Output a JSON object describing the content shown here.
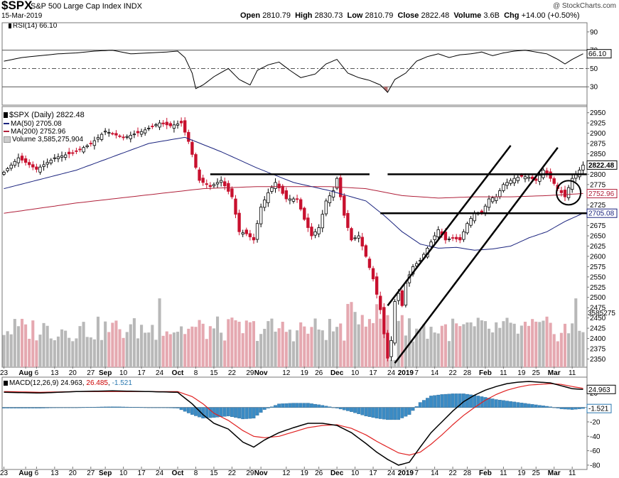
{
  "header": {
    "symbol": "$SPX",
    "name": "S&P 500 Large Cap Index",
    "exchange": "INDX",
    "date": "15-Mar-2019",
    "watermark": "@ StockCharts.com",
    "open_label": "Open",
    "open": "2810.79",
    "high_label": "High",
    "high": "2830.73",
    "low_label": "Low",
    "low": "2810.79",
    "close_label": "Close",
    "close": "2822.48",
    "volume_label": "Volume",
    "volume": "3.6B",
    "chg_label": "Chg",
    "chg": "+14.00 (+0.50%)"
  },
  "rsi_panel": {
    "legend": "RSI(14) 66.10",
    "current_label": "66.10",
    "current": 66.1,
    "ylim": [
      10,
      100
    ],
    "ticks": [
      30,
      50,
      70,
      90
    ],
    "tick_labels": [
      "30",
      "50",
      "70",
      "90"
    ],
    "overbought": 70,
    "midline": 50,
    "oversold": 30,
    "color_line": "#000000",
    "color_fill": "#b06060"
  },
  "price_panel": {
    "legend_main": "$SPX (Daily) 2822.48",
    "legend_ma50": "MA(50) 2705.08",
    "legend_ma200": "MA(200) 2752.96",
    "legend_volume": "Volume 3,585,275,904",
    "ylim": [
      2330,
      2965
    ],
    "ticks": [
      2350,
      2375,
      2400,
      2425,
      2450,
      2475,
      2500,
      2525,
      2550,
      2575,
      2600,
      2625,
      2650,
      2675,
      2700,
      2725,
      2750,
      2775,
      2800,
      2825,
      2850,
      2875,
      2900,
      2925,
      2950
    ],
    "tick_labels": [
      "2350",
      "2375",
      "2400",
      "2425",
      "2450",
      "2475",
      "2500",
      "2525",
      "2550",
      "2575",
      "2600",
      "2625",
      "2650",
      "2675",
      "2700",
      "2725",
      "2750",
      "2775",
      "2800",
      "2825",
      "2850",
      "2875",
      "2900",
      "2925",
      "2950"
    ],
    "last_price_label": "2822.48",
    "last_price": 2822.48,
    "ma200_label": "2752.96",
    "ma200_value": 2752.96,
    "ma50_label": "2705.08",
    "ma50_value": 2705.08,
    "volume_label": "3585275",
    "colors": {
      "up": "#000000",
      "down": "#c8102e",
      "ma50": "#1a237e",
      "ma200": "#b0203a",
      "vol_up": "#b8b8b8",
      "vol_down": "#e5a8b0"
    }
  },
  "macd_panel": {
    "legend_prefix": "MACD(12,26,9)",
    "macd_value": "24.963",
    "signal_value": "26.485",
    "hist_value": "-1.521",
    "ylim": [
      -86,
      42
    ],
    "ticks": [
      -80,
      -60,
      -40,
      -20,
      20
    ],
    "tick_labels": [
      "-80",
      "-60",
      "-40",
      "-20",
      "20"
    ],
    "macd_label": "24.963",
    "macd_now": 24.963,
    "hist_label": "-1.521",
    "hist_now": -1.521,
    "colors": {
      "macd": "#000000",
      "signal": "#e02020",
      "hist": "#3b8bc4"
    }
  },
  "x_axis": {
    "labels": [
      {
        "text": "23",
        "bar": 0
      },
      {
        "text": "Aug",
        "bar": 6,
        "bold": true
      },
      {
        "text": "6",
        "bar": 9
      },
      {
        "text": "13",
        "bar": 14
      },
      {
        "text": "20",
        "bar": 19
      },
      {
        "text": "27",
        "bar": 24
      },
      {
        "text": "Sep",
        "bar": 28,
        "bold": true
      },
      {
        "text": "10",
        "bar": 33
      },
      {
        "text": "17",
        "bar": 38
      },
      {
        "text": "24",
        "bar": 43
      },
      {
        "text": "Oct",
        "bar": 48,
        "bold": true
      },
      {
        "text": "8",
        "bar": 53
      },
      {
        "text": "15",
        "bar": 58
      },
      {
        "text": "22",
        "bar": 63
      },
      {
        "text": "29",
        "bar": 68
      },
      {
        "text": "Nov",
        "bar": 71,
        "bold": true
      },
      {
        "text": "12",
        "bar": 78
      },
      {
        "text": "19",
        "bar": 83
      },
      {
        "text": "26",
        "bar": 87
      },
      {
        "text": "Dec",
        "bar": 92,
        "bold": true
      },
      {
        "text": "10",
        "bar": 97
      },
      {
        "text": "17",
        "bar": 102
      },
      {
        "text": "24",
        "bar": 107
      },
      {
        "text": "2019",
        "bar": 111,
        "bold": true
      },
      {
        "text": "7",
        "bar": 114
      },
      {
        "text": "14",
        "bar": 119
      },
      {
        "text": "22",
        "bar": 124
      },
      {
        "text": "28",
        "bar": 128
      },
      {
        "text": "Feb",
        "bar": 133,
        "bold": true
      },
      {
        "text": "11",
        "bar": 138
      },
      {
        "text": "19",
        "bar": 143
      },
      {
        "text": "25",
        "bar": 147
      },
      {
        "text": "Mar",
        "bar": 152,
        "bold": true
      },
      {
        "text": "11",
        "bar": 157
      }
    ]
  },
  "annotations": [
    {
      "type": "hline",
      "from_bar": 57,
      "to_bar": 101,
      "price": 2800
    },
    {
      "type": "hline",
      "from_bar": 106,
      "to_bar": 161,
      "price": 2800
    },
    {
      "type": "hline",
      "from_bar": 104,
      "to_bar": 161,
      "price": 2705
    },
    {
      "type": "trendline",
      "from_bar": 106,
      "from_price": 2480,
      "to_bar": 140,
      "to_price": 2870
    },
    {
      "type": "trendline",
      "from_bar": 108,
      "from_price": 2340,
      "to_bar": 153,
      "to_price": 2865
    },
    {
      "type": "circle",
      "bar": 156,
      "price": 2755
    }
  ],
  "chart_data": {
    "type": "candlestick",
    "title": "$SPX (Daily)",
    "period": "23-Jul-2018 to 15-Mar-2019",
    "last_close": 2822.48,
    "anchors_bar_index_to_close": [
      [
        0,
        2805
      ],
      [
        4,
        2840
      ],
      [
        9,
        2812
      ],
      [
        14,
        2840
      ],
      [
        19,
        2852
      ],
      [
        24,
        2874
      ],
      [
        28,
        2905
      ],
      [
        33,
        2889
      ],
      [
        38,
        2904
      ],
      [
        43,
        2925
      ],
      [
        46,
        2918
      ],
      [
        49,
        2925
      ],
      [
        51,
        2880
      ],
      [
        54,
        2785
      ],
      [
        57,
        2770
      ],
      [
        60,
        2785
      ],
      [
        63,
        2745
      ],
      [
        65,
        2660
      ],
      [
        67,
        2655
      ],
      [
        69,
        2640
      ],
      [
        71,
        2720
      ],
      [
        73,
        2755
      ],
      [
        75,
        2780
      ],
      [
        78,
        2740
      ],
      [
        81,
        2740
      ],
      [
        83,
        2690
      ],
      [
        85,
        2650
      ],
      [
        87,
        2670
      ],
      [
        89,
        2735
      ],
      [
        91,
        2760
      ],
      [
        92,
        2790
      ],
      [
        94,
        2700
      ],
      [
        96,
        2640
      ],
      [
        98,
        2650
      ],
      [
        100,
        2600
      ],
      [
        102,
        2545
      ],
      [
        104,
        2470
      ],
      [
        106,
        2352
      ],
      [
        107,
        2395
      ],
      [
        108,
        2490
      ],
      [
        109,
        2510
      ],
      [
        110,
        2480
      ],
      [
        111,
        2535
      ],
      [
        113,
        2575
      ],
      [
        115,
        2590
      ],
      [
        118,
        2635
      ],
      [
        120,
        2665
      ],
      [
        122,
        2640
      ],
      [
        124,
        2645
      ],
      [
        126,
        2640
      ],
      [
        128,
        2680
      ],
      [
        130,
        2705
      ],
      [
        132,
        2705
      ],
      [
        134,
        2740
      ],
      [
        136,
        2745
      ],
      [
        138,
        2775
      ],
      [
        141,
        2790
      ],
      [
        143,
        2795
      ],
      [
        145,
        2793
      ],
      [
        147,
        2785
      ],
      [
        149,
        2810
      ],
      [
        151,
        2790
      ],
      [
        153,
        2765
      ],
      [
        155,
        2745
      ],
      [
        157,
        2790
      ],
      [
        159,
        2810
      ],
      [
        160,
        2822.48
      ]
    ],
    "ma50_anchors": [
      [
        0,
        2765
      ],
      [
        20,
        2810
      ],
      [
        40,
        2875
      ],
      [
        50,
        2890
      ],
      [
        60,
        2855
      ],
      [
        70,
        2815
      ],
      [
        80,
        2780
      ],
      [
        90,
        2760
      ],
      [
        100,
        2735
      ],
      [
        105,
        2700
      ],
      [
        110,
        2660
      ],
      [
        115,
        2630
      ],
      [
        120,
        2620
      ],
      [
        125,
        2622
      ],
      [
        130,
        2615
      ],
      [
        135,
        2618
      ],
      [
        140,
        2625
      ],
      [
        145,
        2645
      ],
      [
        150,
        2660
      ],
      [
        155,
        2685
      ],
      [
        160,
        2705.08
      ]
    ],
    "ma200_anchors": [
      [
        0,
        2705
      ],
      [
        20,
        2730
      ],
      [
        40,
        2750
      ],
      [
        55,
        2765
      ],
      [
        70,
        2770
      ],
      [
        90,
        2770
      ],
      [
        100,
        2765
      ],
      [
        110,
        2748
      ],
      [
        120,
        2742
      ],
      [
        130,
        2745
      ],
      [
        140,
        2745
      ],
      [
        150,
        2748
      ],
      [
        160,
        2752.96
      ]
    ],
    "rsi_anchors": [
      [
        0,
        58
      ],
      [
        5,
        62
      ],
      [
        10,
        64
      ],
      [
        15,
        66
      ],
      [
        20,
        67
      ],
      [
        25,
        69
      ],
      [
        30,
        70
      ],
      [
        35,
        66
      ],
      [
        40,
        67
      ],
      [
        45,
        68
      ],
      [
        48,
        69
      ],
      [
        50,
        62
      ],
      [
        52,
        45
      ],
      [
        53,
        28
      ],
      [
        55,
        32
      ],
      [
        58,
        41
      ],
      [
        62,
        50
      ],
      [
        65,
        38
      ],
      [
        68,
        32
      ],
      [
        70,
        48
      ],
      [
        73,
        54
      ],
      [
        76,
        57
      ],
      [
        79,
        48
      ],
      [
        82,
        40
      ],
      [
        86,
        44
      ],
      [
        89,
        55
      ],
      [
        92,
        60
      ],
      [
        95,
        45
      ],
      [
        98,
        40
      ],
      [
        101,
        37
      ],
      [
        104,
        32
      ],
      [
        106,
        24
      ],
      [
        108,
        38
      ],
      [
        111,
        45
      ],
      [
        114,
        58
      ],
      [
        117,
        63
      ],
      [
        120,
        66
      ],
      [
        123,
        62
      ],
      [
        126,
        65
      ],
      [
        129,
        66
      ],
      [
        132,
        68
      ],
      [
        135,
        64
      ],
      [
        138,
        67
      ],
      [
        141,
        69
      ],
      [
        144,
        70
      ],
      [
        147,
        68
      ],
      [
        150,
        66
      ],
      [
        153,
        60
      ],
      [
        155,
        55
      ],
      [
        157,
        60
      ],
      [
        160,
        66.1
      ]
    ],
    "macd_anchors": [
      [
        0,
        21
      ],
      [
        10,
        20
      ],
      [
        20,
        22
      ],
      [
        30,
        23
      ],
      [
        40,
        22
      ],
      [
        48,
        21
      ],
      [
        52,
        5
      ],
      [
        55,
        -10
      ],
      [
        58,
        -22
      ],
      [
        62,
        -30
      ],
      [
        66,
        -48
      ],
      [
        69,
        -55
      ],
      [
        72,
        -45
      ],
      [
        76,
        -35
      ],
      [
        80,
        -28
      ],
      [
        84,
        -22
      ],
      [
        88,
        -22
      ],
      [
        92,
        -25
      ],
      [
        96,
        -35
      ],
      [
        100,
        -50
      ],
      [
        103,
        -62
      ],
      [
        106,
        -72
      ],
      [
        109,
        -80
      ],
      [
        112,
        -76
      ],
      [
        115,
        -55
      ],
      [
        118,
        -35
      ],
      [
        121,
        -20
      ],
      [
        124,
        -5
      ],
      [
        127,
        8
      ],
      [
        130,
        17
      ],
      [
        133,
        24
      ],
      [
        136,
        29
      ],
      [
        139,
        33
      ],
      [
        142,
        35
      ],
      [
        145,
        36
      ],
      [
        148,
        35
      ],
      [
        151,
        34
      ],
      [
        154,
        30
      ],
      [
        157,
        26
      ],
      [
        160,
        24.963
      ]
    ],
    "signal_anchors": [
      [
        0,
        22
      ],
      [
        10,
        21
      ],
      [
        20,
        22
      ],
      [
        30,
        22
      ],
      [
        40,
        22
      ],
      [
        48,
        22
      ],
      [
        52,
        15
      ],
      [
        55,
        5
      ],
      [
        58,
        -8
      ],
      [
        62,
        -18
      ],
      [
        66,
        -32
      ],
      [
        69,
        -40
      ],
      [
        72,
        -42
      ],
      [
        76,
        -40
      ],
      [
        80,
        -34
      ],
      [
        84,
        -28
      ],
      [
        88,
        -25
      ],
      [
        92,
        -24
      ],
      [
        96,
        -29
      ],
      [
        100,
        -38
      ],
      [
        103,
        -47
      ],
      [
        106,
        -55
      ],
      [
        109,
        -63
      ],
      [
        112,
        -66
      ],
      [
        115,
        -62
      ],
      [
        118,
        -51
      ],
      [
        121,
        -38
      ],
      [
        124,
        -24
      ],
      [
        127,
        -11
      ],
      [
        130,
        0
      ],
      [
        133,
        10
      ],
      [
        136,
        18
      ],
      [
        139,
        24
      ],
      [
        142,
        28
      ],
      [
        145,
        31
      ],
      [
        148,
        32
      ],
      [
        151,
        33
      ],
      [
        154,
        32
      ],
      [
        157,
        29
      ],
      [
        160,
        26.485
      ]
    ]
  }
}
